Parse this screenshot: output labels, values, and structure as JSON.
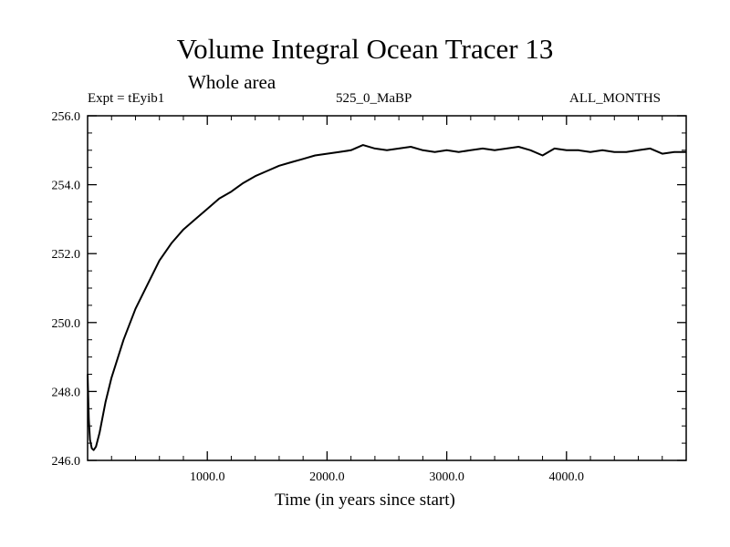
{
  "chart_data": {
    "type": "line",
    "title": "Volume Integral Ocean Tracer 13",
    "subtitle": "Whole area",
    "header_left": "Expt = tEyib1",
    "header_center": "525_0_MaBP",
    "header_right": "ALL_MONTHS",
    "xlabel": "Time (in years since start)",
    "ylabel": "",
    "xlim": [
      0,
      5000
    ],
    "ylim": [
      246.0,
      256.0
    ],
    "x_ticks": [
      1000,
      2000,
      3000,
      4000
    ],
    "x_tick_labels": [
      "1000.0",
      "2000.0",
      "3000.0",
      "4000.0"
    ],
    "y_ticks": [
      246,
      248,
      250,
      252,
      254,
      256
    ],
    "y_tick_labels": [
      "246.0",
      "248.0",
      "250.0",
      "252.0",
      "254.0",
      "256.0"
    ],
    "grid": false,
    "legend": "none",
    "series": [
      {
        "color": "#000000",
        "x": [
          0,
          10,
          20,
          35,
          50,
          70,
          100,
          150,
          200,
          300,
          400,
          500,
          600,
          700,
          800,
          900,
          1000,
          1100,
          1200,
          1300,
          1400,
          1500,
          1600,
          1700,
          1800,
          1900,
          2000,
          2100,
          2200,
          2300,
          2400,
          2500,
          2600,
          2700,
          2800,
          2900,
          3000,
          3100,
          3200,
          3300,
          3400,
          3500,
          3600,
          3700,
          3800,
          3900,
          4000,
          4100,
          4200,
          4300,
          4400,
          4500,
          4600,
          4700,
          4800,
          4900,
          5000
        ],
        "y": [
          248.5,
          247.2,
          246.6,
          246.35,
          246.3,
          246.4,
          246.8,
          247.7,
          248.4,
          249.5,
          250.4,
          251.1,
          251.8,
          252.3,
          252.7,
          253.0,
          253.3,
          253.6,
          253.8,
          254.05,
          254.25,
          254.4,
          254.55,
          254.65,
          254.75,
          254.85,
          254.9,
          254.95,
          255.0,
          255.15,
          255.05,
          255.0,
          255.05,
          255.1,
          255.0,
          254.95,
          255.0,
          254.95,
          255.0,
          255.05,
          255.0,
          255.05,
          255.1,
          255.0,
          254.85,
          255.05,
          255.0,
          255.0,
          254.95,
          255.0,
          254.95,
          254.95,
          255.0,
          255.05,
          254.9,
          254.95,
          254.95
        ]
      }
    ]
  }
}
